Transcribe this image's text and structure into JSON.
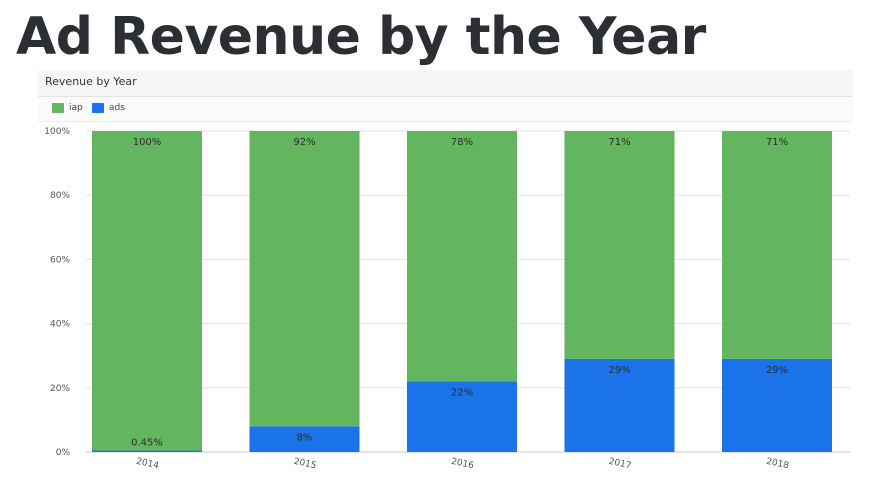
{
  "page_title": "Ad Revenue by the Year",
  "chart_data": {
    "type": "bar",
    "stacked": true,
    "title": "Revenue by Year",
    "categories": [
      "2014",
      "2015",
      "2016",
      "2017",
      "2018"
    ],
    "series": [
      {
        "name": "iap",
        "color": "#63b65f",
        "values": [
          99.55,
          92,
          78,
          71,
          71
        ],
        "labels": [
          "100%",
          "92%",
          "78%",
          "71%",
          "71%"
        ]
      },
      {
        "name": "ads",
        "color": "#1a73e8",
        "values": [
          0.45,
          8,
          22,
          29,
          29
        ],
        "labels": [
          "0.45%",
          "8%",
          "22%",
          "29%",
          "29%"
        ]
      }
    ],
    "ylim": [
      0,
      100
    ],
    "yticks": [
      "0%",
      "20%",
      "40%",
      "60%",
      "80%",
      "100%"
    ],
    "grid": true,
    "legend_position": "top-left",
    "xlabel": "",
    "ylabel": ""
  }
}
